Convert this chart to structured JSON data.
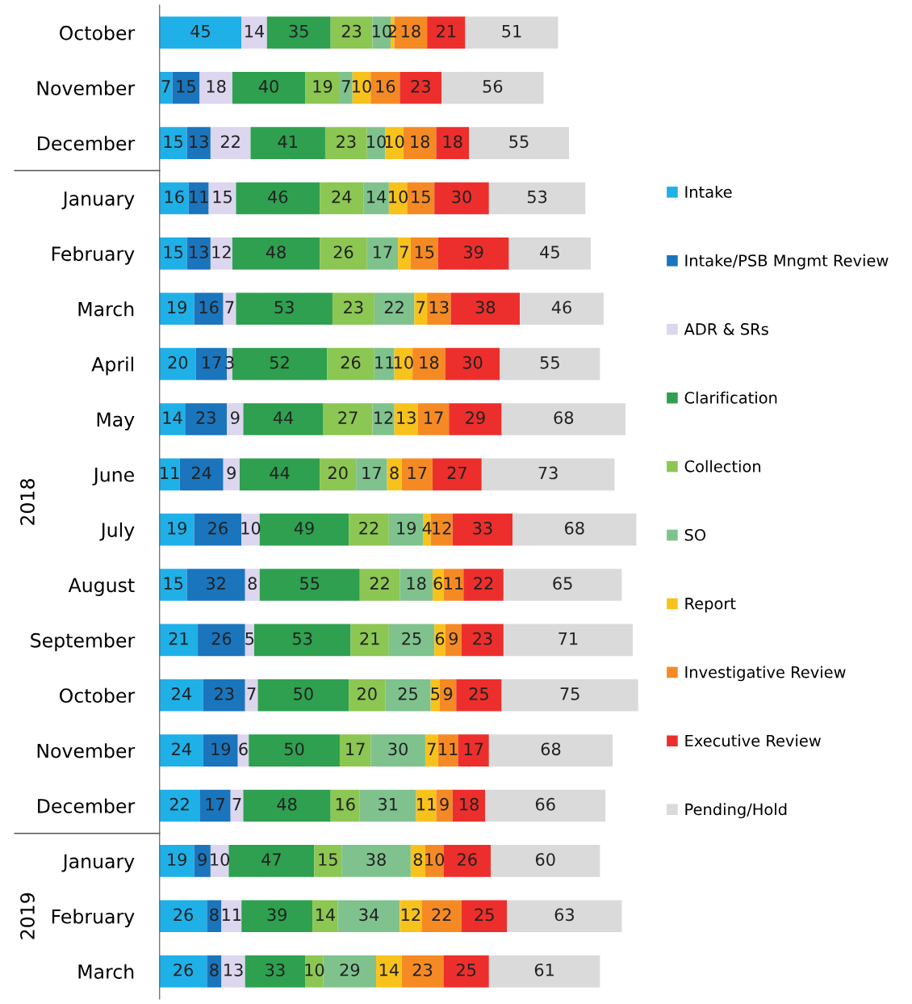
{
  "chart_data": {
    "type": "bar",
    "orientation": "horizontal",
    "stacked": true,
    "data_labels": true,
    "legend": "right",
    "grid": false,
    "categories": [
      "October",
      "November",
      "December",
      "January",
      "February",
      "March",
      "April",
      "May",
      "June",
      "July",
      "August",
      "September",
      "October",
      "November",
      "December",
      "January",
      "February",
      "March"
    ],
    "annotations": [
      "2018",
      "2019"
    ],
    "series": [
      {
        "name": "Intake",
        "color": "#1fb0e8",
        "values": [
          45,
          7,
          15,
          16,
          15,
          19,
          20,
          14,
          11,
          19,
          15,
          21,
          24,
          24,
          22,
          19,
          26,
          26
        ]
      },
      {
        "name": "Intake/PSB Mngmt Review",
        "color": "#1a75bd",
        "values": [
          null,
          15,
          13,
          11,
          13,
          16,
          17,
          23,
          24,
          26,
          32,
          26,
          23,
          19,
          17,
          9,
          8,
          8
        ]
      },
      {
        "name": "ADR & SRs",
        "color": "#dcd6ee",
        "values": [
          14,
          18,
          22,
          15,
          12,
          7,
          3,
          9,
          9,
          10,
          8,
          5,
          7,
          6,
          7,
          10,
          11,
          13
        ]
      },
      {
        "name": "Clarification",
        "color": "#2ea04f",
        "values": [
          35,
          40,
          41,
          46,
          48,
          53,
          52,
          44,
          44,
          49,
          55,
          53,
          50,
          50,
          48,
          47,
          39,
          33
        ]
      },
      {
        "name": "Collection",
        "color": "#8cc653",
        "values": [
          23,
          19,
          23,
          24,
          26,
          23,
          26,
          27,
          20,
          22,
          22,
          21,
          20,
          17,
          16,
          15,
          14,
          10
        ]
      },
      {
        "name": "SO",
        "color": "#7fc28e",
        "values": [
          10,
          7,
          10,
          14,
          17,
          22,
          11,
          12,
          17,
          19,
          18,
          25,
          25,
          30,
          31,
          38,
          34,
          29
        ]
      },
      {
        "name": "Report",
        "color": "#f8c21c",
        "values": [
          2,
          10,
          10,
          10,
          7,
          7,
          10,
          13,
          8,
          4,
          6,
          6,
          5,
          7,
          11,
          8,
          12,
          14
        ]
      },
      {
        "name": "Investigative Review",
        "color": "#f58a24",
        "values": [
          18,
          16,
          18,
          15,
          15,
          13,
          18,
          17,
          17,
          12,
          11,
          9,
          9,
          11,
          9,
          10,
          22,
          23
        ]
      },
      {
        "name": "Executive Review",
        "color": "#ec2f2c",
        "values": [
          21,
          23,
          18,
          30,
          39,
          38,
          30,
          29,
          27,
          33,
          22,
          23,
          25,
          17,
          18,
          26,
          25,
          25
        ]
      },
      {
        "name": "Pending/Hold",
        "color": "#dadada",
        "values": [
          51,
          56,
          55,
          53,
          45,
          46,
          55,
          68,
          73,
          68,
          65,
          71,
          75,
          68,
          66,
          60,
          63,
          61
        ]
      }
    ]
  }
}
